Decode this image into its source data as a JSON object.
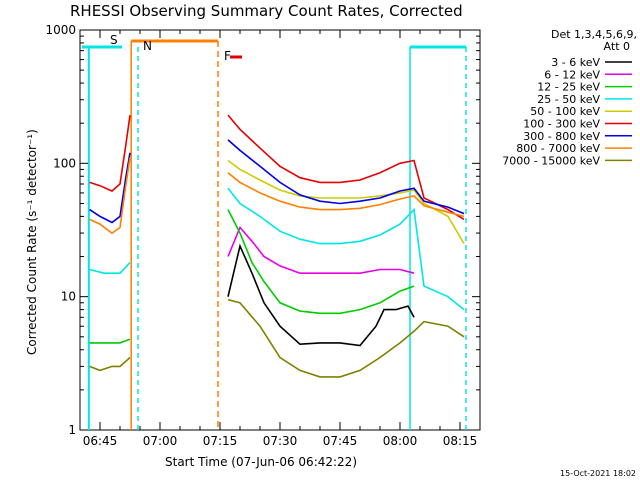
{
  "chart_data": {
    "type": "line",
    "title": "RHESSI Observing Summary Count Rates, Corrected",
    "xlabel": "Start Time (07-Jun-06 06:42:22)",
    "ylabel": "Corrected Count Rate (s⁻¹ detector⁻¹)",
    "y_scale": "log",
    "ylim": [
      1,
      1000
    ],
    "xlim_minutes_after_0640": [
      0,
      100
    ],
    "x_ticks": [
      {
        "label": "06:45",
        "minute": 5
      },
      {
        "label": "07:00",
        "minute": 20
      },
      {
        "label": "07:15",
        "minute": 35
      },
      {
        "label": "07:30",
        "minute": 50
      },
      {
        "label": "07:45",
        "minute": 65
      },
      {
        "label": "08:00",
        "minute": 80
      },
      {
        "label": "08:15",
        "minute": 95
      }
    ],
    "y_ticks": [
      {
        "label": "1",
        "value": 1
      },
      {
        "label": "10",
        "value": 10
      },
      {
        "label": "100",
        "value": 100
      },
      {
        "label": "1000",
        "value": 1000
      }
    ],
    "legend_header": [
      "Det 1,3,4,5,6,9,",
      "Att 0"
    ],
    "legend_position": "right",
    "series": [
      {
        "name": "3 - 6 keV",
        "color": "#000000",
        "values": [
          {
            "x": 2.4,
            "y": null
          },
          {
            "x": 37,
            "y": 10
          },
          {
            "x": 40,
            "y": 24
          },
          {
            "x": 43,
            "y": 15
          },
          {
            "x": 46,
            "y": 9
          },
          {
            "x": 50,
            "y": 6
          },
          {
            "x": 55,
            "y": 4.4
          },
          {
            "x": 60,
            "y": 4.5
          },
          {
            "x": 65,
            "y": 4.5
          },
          {
            "x": 70,
            "y": 4.3
          },
          {
            "x": 74,
            "y": 6
          },
          {
            "x": 76,
            "y": 8
          },
          {
            "x": 79,
            "y": 8
          },
          {
            "x": 82,
            "y": 8.5
          },
          {
            "x": 83.5,
            "y": 7
          }
        ]
      },
      {
        "name": "6 - 12 keV",
        "color": "#e600e6",
        "values": [
          {
            "x": 37,
            "y": 20
          },
          {
            "x": 40,
            "y": 33
          },
          {
            "x": 43,
            "y": 26
          },
          {
            "x": 46,
            "y": 20
          },
          {
            "x": 50,
            "y": 17
          },
          {
            "x": 55,
            "y": 15
          },
          {
            "x": 60,
            "y": 15
          },
          {
            "x": 65,
            "y": 15
          },
          {
            "x": 70,
            "y": 15
          },
          {
            "x": 75,
            "y": 16
          },
          {
            "x": 80,
            "y": 16
          },
          {
            "x": 83.5,
            "y": 15
          }
        ]
      },
      {
        "name": "12 - 25 keV",
        "color": "#00cc00",
        "values": [
          {
            "x": 2.4,
            "y": 4.5
          },
          {
            "x": 6,
            "y": 4.5
          },
          {
            "x": 10,
            "y": 4.5
          },
          {
            "x": 12.5,
            "y": 4.8
          },
          {
            "x": 37,
            "y": 45
          },
          {
            "x": 40,
            "y": 30
          },
          {
            "x": 43,
            "y": 18
          },
          {
            "x": 46,
            "y": 13
          },
          {
            "x": 50,
            "y": 9
          },
          {
            "x": 55,
            "y": 7.8
          },
          {
            "x": 60,
            "y": 7.5
          },
          {
            "x": 65,
            "y": 7.5
          },
          {
            "x": 70,
            "y": 8
          },
          {
            "x": 75,
            "y": 9
          },
          {
            "x": 80,
            "y": 11
          },
          {
            "x": 83.5,
            "y": 12
          }
        ]
      },
      {
        "name": "25 - 50 keV",
        "color": "#00e6e6",
        "values": [
          {
            "x": 2.4,
            "y": 16
          },
          {
            "x": 6,
            "y": 15
          },
          {
            "x": 10,
            "y": 15
          },
          {
            "x": 12.5,
            "y": 18
          },
          {
            "x": 37,
            "y": 65
          },
          {
            "x": 40,
            "y": 50
          },
          {
            "x": 45,
            "y": 40
          },
          {
            "x": 50,
            "y": 31
          },
          {
            "x": 55,
            "y": 27
          },
          {
            "x": 60,
            "y": 25
          },
          {
            "x": 65,
            "y": 25
          },
          {
            "x": 70,
            "y": 26
          },
          {
            "x": 75,
            "y": 29
          },
          {
            "x": 80,
            "y": 35
          },
          {
            "x": 83.5,
            "y": 45
          },
          {
            "x": 86,
            "y": 12
          },
          {
            "x": 92,
            "y": 10
          },
          {
            "x": 96,
            "y": 8
          }
        ]
      },
      {
        "name": "50 - 100 keV",
        "color": "#cccc00",
        "values": [
          {
            "x": 37,
            "y": 105
          },
          {
            "x": 40,
            "y": 90
          },
          {
            "x": 45,
            "y": 75
          },
          {
            "x": 50,
            "y": 63
          },
          {
            "x": 55,
            "y": 57
          },
          {
            "x": 60,
            "y": 55
          },
          {
            "x": 65,
            "y": 55
          },
          {
            "x": 70,
            "y": 55
          },
          {
            "x": 75,
            "y": 57
          },
          {
            "x": 80,
            "y": 60
          },
          {
            "x": 83.5,
            "y": 63
          },
          {
            "x": 86,
            "y": 50
          },
          {
            "x": 92,
            "y": 40
          },
          {
            "x": 96,
            "y": 25
          }
        ]
      },
      {
        "name": "100 - 300 keV",
        "color": "#e60000",
        "values": [
          {
            "x": 2.4,
            "y": 72
          },
          {
            "x": 5,
            "y": 68
          },
          {
            "x": 8,
            "y": 62
          },
          {
            "x": 10,
            "y": 70
          },
          {
            "x": 11.5,
            "y": 140
          },
          {
            "x": 12.5,
            "y": 230
          },
          {
            "x": 37,
            "y": 230
          },
          {
            "x": 40,
            "y": 180
          },
          {
            "x": 45,
            "y": 130
          },
          {
            "x": 50,
            "y": 95
          },
          {
            "x": 55,
            "y": 78
          },
          {
            "x": 60,
            "y": 72
          },
          {
            "x": 65,
            "y": 72
          },
          {
            "x": 70,
            "y": 75
          },
          {
            "x": 75,
            "y": 85
          },
          {
            "x": 80,
            "y": 100
          },
          {
            "x": 83.5,
            "y": 105
          },
          {
            "x": 86,
            "y": 55
          },
          {
            "x": 92,
            "y": 45
          },
          {
            "x": 96,
            "y": 38
          }
        ]
      },
      {
        "name": "300 - 800 keV",
        "color": "#0000e6",
        "values": [
          {
            "x": 2.4,
            "y": 45
          },
          {
            "x": 5,
            "y": 40
          },
          {
            "x": 8,
            "y": 36
          },
          {
            "x": 10,
            "y": 40
          },
          {
            "x": 11.5,
            "y": 80
          },
          {
            "x": 12.5,
            "y": 120
          },
          {
            "x": 37,
            "y": 150
          },
          {
            "x": 40,
            "y": 125
          },
          {
            "x": 45,
            "y": 95
          },
          {
            "x": 50,
            "y": 72
          },
          {
            "x": 55,
            "y": 58
          },
          {
            "x": 60,
            "y": 52
          },
          {
            "x": 65,
            "y": 50
          },
          {
            "x": 70,
            "y": 52
          },
          {
            "x": 75,
            "y": 55
          },
          {
            "x": 80,
            "y": 62
          },
          {
            "x": 83.5,
            "y": 65
          },
          {
            "x": 86,
            "y": 52
          },
          {
            "x": 92,
            "y": 47
          },
          {
            "x": 96,
            "y": 42
          }
        ]
      },
      {
        "name": "800 - 7000 keV",
        "color": "#ff8000",
        "values": [
          {
            "x": 2.4,
            "y": 38
          },
          {
            "x": 5,
            "y": 35
          },
          {
            "x": 8,
            "y": 30
          },
          {
            "x": 10,
            "y": 33
          },
          {
            "x": 11.5,
            "y": 70
          },
          {
            "x": 12.5,
            "y": 110
          },
          {
            "x": 37,
            "y": 85
          },
          {
            "x": 40,
            "y": 72
          },
          {
            "x": 45,
            "y": 60
          },
          {
            "x": 50,
            "y": 52
          },
          {
            "x": 55,
            "y": 47
          },
          {
            "x": 60,
            "y": 45
          },
          {
            "x": 65,
            "y": 45
          },
          {
            "x": 70,
            "y": 46
          },
          {
            "x": 75,
            "y": 49
          },
          {
            "x": 80,
            "y": 54
          },
          {
            "x": 83.5,
            "y": 57
          },
          {
            "x": 86,
            "y": 48
          },
          {
            "x": 92,
            "y": 43
          },
          {
            "x": 96,
            "y": 40
          }
        ]
      },
      {
        "name": "7000 - 15000 keV",
        "color": "#808000",
        "values": [
          {
            "x": 2.4,
            "y": 3
          },
          {
            "x": 5,
            "y": 2.8
          },
          {
            "x": 8,
            "y": 3
          },
          {
            "x": 10,
            "y": 3
          },
          {
            "x": 12.5,
            "y": 3.5
          },
          {
            "x": 37,
            "y": 9.5
          },
          {
            "x": 40,
            "y": 9
          },
          {
            "x": 45,
            "y": 6
          },
          {
            "x": 50,
            "y": 3.5
          },
          {
            "x": 55,
            "y": 2.8
          },
          {
            "x": 60,
            "y": 2.5
          },
          {
            "x": 65,
            "y": 2.5
          },
          {
            "x": 70,
            "y": 2.8
          },
          {
            "x": 75,
            "y": 3.5
          },
          {
            "x": 80,
            "y": 4.5
          },
          {
            "x": 83.5,
            "y": 5.5
          },
          {
            "x": 86,
            "y": 6.5
          },
          {
            "x": 92,
            "y": 6
          },
          {
            "x": 96,
            "y": 5
          }
        ]
      }
    ],
    "annotations": [
      {
        "label": "S",
        "minute": 12.8,
        "color": "#ff8000"
      },
      {
        "label": "N",
        "minute": 15,
        "color": "#00e6e6"
      },
      {
        "label": "F",
        "minute": 35,
        "color": "#e60000"
      }
    ],
    "timestamp": "15-Oct-2021 18:02"
  }
}
